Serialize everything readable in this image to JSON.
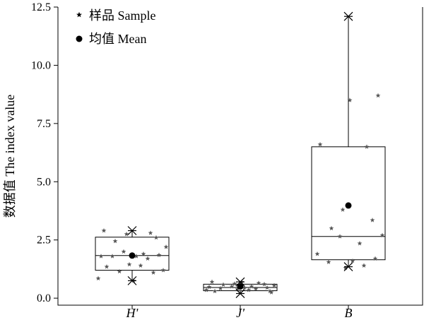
{
  "chart_data": {
    "type": "box",
    "ylabel": "数据值 The index value",
    "xlabel": "",
    "ylim": [
      -0.3,
      12.5
    ],
    "yticks": [
      0.0,
      2.5,
      5.0,
      7.5,
      10.0,
      12.5
    ],
    "ytick_labels": [
      "0.0",
      "2.5",
      "5.0",
      "7.5",
      "10.0",
      "12.5"
    ],
    "categories": [
      "H'",
      "J'",
      "B"
    ],
    "legend": {
      "position": "top-left",
      "entries": [
        {
          "marker": "star",
          "label": "样品 Sample"
        },
        {
          "marker": "circle",
          "label": "均值 Mean"
        }
      ]
    },
    "boxes": [
      {
        "category": "H'",
        "q1": 1.2,
        "median": 1.83,
        "q3": 2.62,
        "whisker_low": 0.75,
        "whisker_high": 2.9,
        "mean": 1.83,
        "extremes": [
          0.75,
          2.9
        ],
        "samples": [
          0.85,
          1.1,
          1.15,
          1.2,
          1.35,
          1.4,
          1.45,
          1.7,
          1.8,
          1.8,
          1.85,
          1.8,
          1.9,
          2.0,
          2.2,
          2.45,
          2.6,
          2.75,
          2.8,
          2.9,
          0.75
        ]
      },
      {
        "category": "J'",
        "q1": 0.32,
        "median": 0.46,
        "q3": 0.6,
        "whisker_low": 0.18,
        "whisker_high": 0.7,
        "mean": 0.5,
        "extremes": [
          0.2,
          0.7
        ],
        "samples": [
          0.25,
          0.3,
          0.35,
          0.38,
          0.4,
          0.42,
          0.45,
          0.45,
          0.48,
          0.5,
          0.5,
          0.55,
          0.58,
          0.6,
          0.62,
          0.65,
          0.7,
          0.7,
          0.3,
          0.35
        ]
      },
      {
        "category": "B",
        "q1": 1.65,
        "median": 2.65,
        "q3": 6.5,
        "whisker_low": 1.35,
        "whisker_high": 12.1,
        "mean": 3.98,
        "extremes": [
          1.35,
          12.1
        ],
        "samples": [
          1.3,
          1.4,
          1.55,
          1.6,
          1.7,
          1.9,
          2.35,
          2.65,
          2.7,
          3.0,
          3.35,
          3.8,
          6.5,
          6.6,
          8.5,
          8.7
        ]
      }
    ]
  }
}
